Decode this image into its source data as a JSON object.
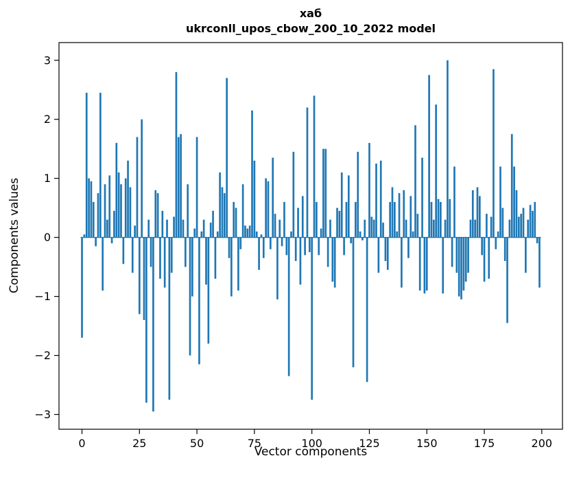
{
  "chart_data": {
    "type": "bar",
    "title": "хаб",
    "subtitle": "ukrconll_upos_cbow_200_10_2022 model",
    "xlabel": "Vector components",
    "ylabel": "Components values",
    "x_ticks": [
      0,
      25,
      50,
      75,
      100,
      125,
      150,
      175,
      200
    ],
    "y_ticks": [
      -3,
      -2,
      -1,
      0,
      1,
      2,
      3
    ],
    "xlim": [
      -10,
      209
    ],
    "ylim": [
      -3.25,
      3.3
    ],
    "grid": false,
    "legend": "none",
    "bar_color": "#1f77b4",
    "bar_width": 0.8,
    "x_start": 0,
    "values": [
      -1.7,
      0.05,
      2.45,
      1.0,
      0.95,
      0.6,
      -0.15,
      0.75,
      2.45,
      -0.9,
      0.9,
      0.3,
      1.05,
      -0.1,
      0.45,
      1.6,
      1.1,
      0.9,
      -0.45,
      1.0,
      1.3,
      0.85,
      -0.6,
      0.2,
      1.7,
      -1.3,
      2.0,
      -1.4,
      -2.8,
      0.3,
      -0.5,
      -2.95,
      0.8,
      0.75,
      -0.7,
      0.45,
      -0.85,
      0.3,
      -2.75,
      -0.6,
      0.35,
      2.8,
      1.7,
      1.75,
      0.3,
      -0.5,
      0.9,
      -2.0,
      -1.0,
      0.15,
      1.7,
      -2.15,
      0.1,
      0.3,
      -0.8,
      -1.8,
      0.25,
      0.45,
      -0.7,
      0.1,
      1.1,
      0.85,
      0.75,
      2.7,
      -0.35,
      -1.0,
      0.6,
      0.5,
      -0.9,
      -0.2,
      0.9,
      0.2,
      0.15,
      0.2,
      2.15,
      1.3,
      0.1,
      -0.55,
      0.05,
      -0.35,
      1.0,
      0.95,
      -0.2,
      1.35,
      0.4,
      -1.05,
      0.3,
      -0.15,
      0.6,
      -0.3,
      -2.35,
      0.1,
      1.45,
      -0.4,
      0.5,
      -0.8,
      0.7,
      -0.3,
      2.2,
      -0.25,
      -2.75,
      2.4,
      0.6,
      -0.3,
      0.15,
      1.5,
      1.5,
      -0.5,
      0.3,
      -0.75,
      -0.85,
      0.5,
      0.45,
      1.1,
      -0.3,
      0.6,
      1.05,
      -0.1,
      -2.2,
      0.6,
      1.45,
      0.1,
      -0.05,
      0.3,
      -2.45,
      1.6,
      0.35,
      0.3,
      1.25,
      -0.6,
      1.3,
      0.25,
      -0.4,
      -0.55,
      0.6,
      0.85,
      0.6,
      0.1,
      0.75,
      -0.85,
      0.8,
      0.3,
      -0.35,
      0.7,
      0.1,
      1.9,
      0.4,
      -0.9,
      1.35,
      -0.95,
      -0.9,
      2.75,
      0.6,
      0.3,
      2.25,
      0.65,
      0.6,
      -0.95,
      0.3,
      3.0,
      0.65,
      -0.5,
      1.2,
      -0.6,
      -1.0,
      -1.05,
      -0.9,
      -0.75,
      -0.6,
      0.3,
      0.8,
      0.3,
      0.85,
      0.7,
      -0.3,
      -0.75,
      0.4,
      -0.7,
      0.35,
      2.85,
      -0.2,
      0.1,
      1.2,
      0.5,
      -0.4,
      -1.45,
      0.3,
      1.75,
      1.2,
      0.8,
      0.35,
      0.4,
      0.5,
      -0.6,
      0.3,
      0.55,
      0.45,
      0.6,
      -0.1,
      -0.85
    ]
  }
}
